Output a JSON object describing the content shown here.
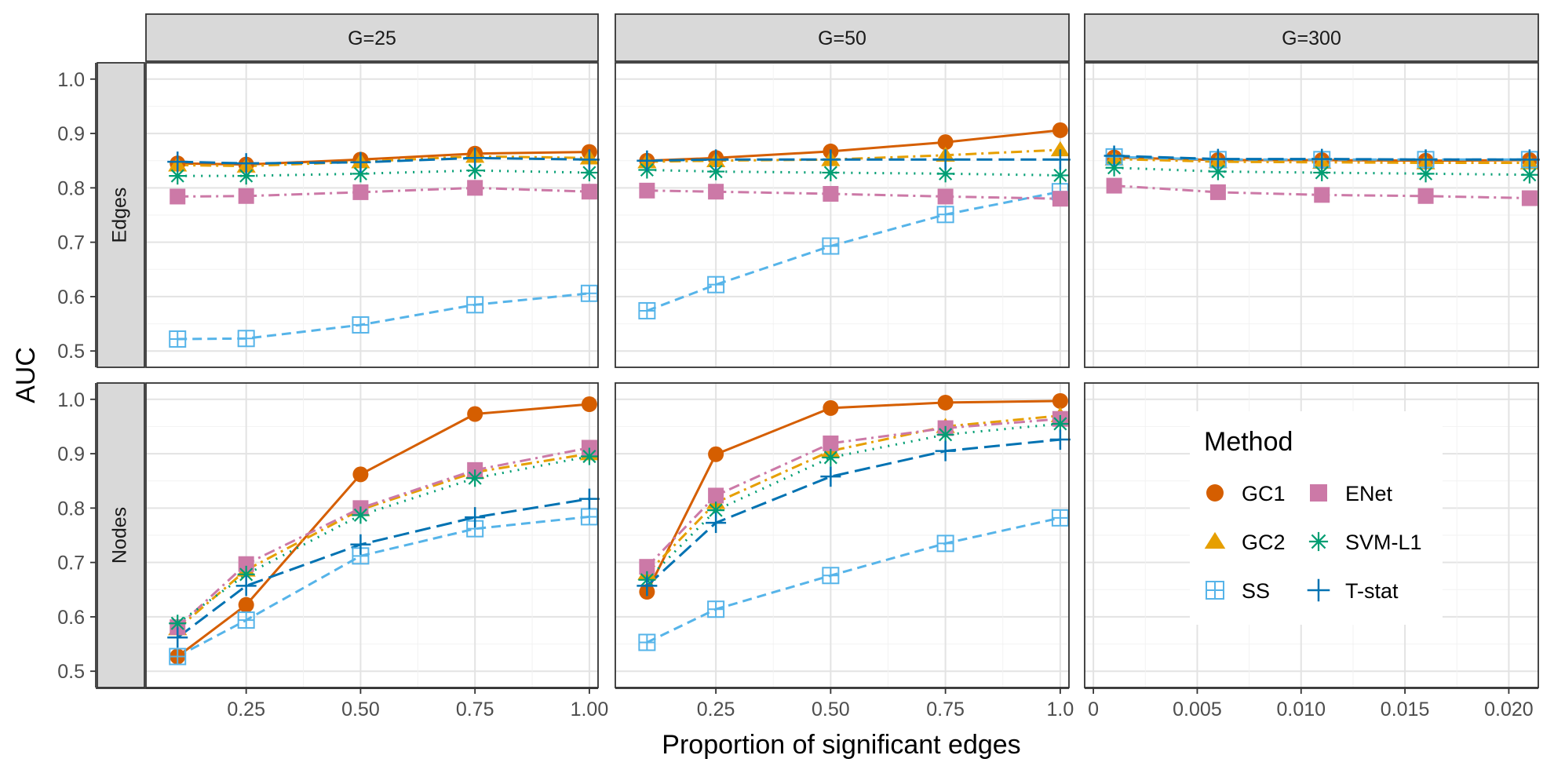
{
  "chart_data": {
    "type": "line",
    "ylabel": "AUC",
    "xlabel": "Proportion of significant edges",
    "ylim": [
      0.5,
      1.0
    ],
    "yticks": [
      "0.5",
      "0.6",
      "0.7",
      "0.8",
      "0.9",
      "1.0"
    ],
    "yticks_values": [
      0.5,
      0.6,
      0.7,
      0.8,
      0.9,
      1.0
    ],
    "columns": [
      {
        "label": "G=25",
        "xlim": [
          0.05,
          1.0
        ],
        "xticks_values": [
          0.25,
          0.5,
          0.75,
          1.0
        ],
        "xticks": [
          "0.25",
          "0.50",
          "0.75",
          "1.00"
        ]
      },
      {
        "label": "G=50",
        "xlim": [
          0.05,
          1.0
        ],
        "xticks_values": [
          0.25,
          0.5,
          0.75,
          1.0
        ],
        "xticks": [
          "0.25",
          "0.50",
          "0.75",
          "1.0"
        ]
      },
      {
        "label": "G=300",
        "xlim": [
          0.0,
          0.021
        ],
        "xticks_values": [
          0.0,
          0.005,
          0.01,
          0.015,
          0.02
        ],
        "xticks": [
          "0",
          "0.005",
          "0.010",
          "0.015",
          "0.020"
        ]
      }
    ],
    "rows": [
      {
        "label": "Edges"
      },
      {
        "label": "Nodes"
      }
    ],
    "legend": {
      "title": "Method",
      "entries": [
        "GC1",
        "ENet",
        "GC2",
        "SVM-L1",
        "SS",
        "T-stat"
      ],
      "placement": "bottom-right empty panel"
    },
    "methods": [
      {
        "name": "GC1",
        "color": "#D55E00",
        "linestyle": "solid",
        "marker": "circle"
      },
      {
        "name": "GC2",
        "color": "#E69F00",
        "linestyle": "dashdot",
        "marker": "triangle"
      },
      {
        "name": "SS",
        "color": "#56B4E9",
        "linestyle": "dashed",
        "marker": "boxplus"
      },
      {
        "name": "ENet",
        "color": "#CC79A7",
        "linestyle": "dashdot",
        "marker": "square"
      },
      {
        "name": "SVM-L1",
        "color": "#009E73",
        "linestyle": "dotted",
        "marker": "asterisk"
      },
      {
        "name": "T-stat",
        "color": "#0072B2",
        "linestyle": "longdash",
        "marker": "plus"
      }
    ],
    "panels": [
      {
        "row": 0,
        "col": 0,
        "x": [
          0.1,
          0.25,
          0.5,
          0.75,
          1.0
        ],
        "series": [
          {
            "name": "GC1",
            "values": [
              0.845,
              0.843,
              0.852,
              0.863,
              0.866
            ]
          },
          {
            "name": "GC2",
            "values": [
              0.842,
              0.84,
              0.848,
              0.858,
              0.855
            ]
          },
          {
            "name": "SS",
            "values": [
              0.522,
              0.523,
              0.548,
              0.585,
              0.606
            ]
          },
          {
            "name": "ENet",
            "values": [
              0.784,
              0.785,
              0.792,
              0.8,
              0.793
            ]
          },
          {
            "name": "SVM-L1",
            "values": [
              0.822,
              0.822,
              0.826,
              0.832,
              0.828
            ]
          },
          {
            "name": "T-stat",
            "values": [
              0.848,
              0.845,
              0.847,
              0.855,
              0.852
            ]
          }
        ]
      },
      {
        "row": 0,
        "col": 1,
        "x": [
          0.1,
          0.25,
          0.5,
          0.75,
          1.0
        ],
        "series": [
          {
            "name": "GC1",
            "values": [
              0.85,
              0.855,
              0.867,
              0.884,
              0.906
            ]
          },
          {
            "name": "GC2",
            "values": [
              0.848,
              0.85,
              0.852,
              0.86,
              0.87
            ]
          },
          {
            "name": "SS",
            "values": [
              0.574,
              0.622,
              0.693,
              0.751,
              0.793
            ]
          },
          {
            "name": "ENet",
            "values": [
              0.795,
              0.793,
              0.789,
              0.784,
              0.78
            ]
          },
          {
            "name": "SVM-L1",
            "values": [
              0.833,
              0.83,
              0.828,
              0.826,
              0.823
            ]
          },
          {
            "name": "T-stat",
            "values": [
              0.85,
              0.852,
              0.852,
              0.852,
              0.852
            ]
          }
        ]
      },
      {
        "row": 0,
        "col": 2,
        "x": [
          0.001,
          0.006,
          0.011,
          0.016,
          0.021
        ],
        "series": [
          {
            "name": "GC1",
            "values": [
              0.856,
              0.851,
              0.851,
              0.85,
              0.851
            ]
          },
          {
            "name": "GC2",
            "values": [
              0.853,
              0.848,
              0.847,
              0.846,
              0.846
            ]
          },
          {
            "name": "SS",
            "values": [
              0.857,
              0.852,
              0.852,
              0.852,
              0.852
            ]
          },
          {
            "name": "ENet",
            "values": [
              0.804,
              0.792,
              0.787,
              0.785,
              0.781
            ]
          },
          {
            "name": "SVM-L1",
            "values": [
              0.837,
              0.83,
              0.828,
              0.826,
              0.824
            ]
          },
          {
            "name": "T-stat",
            "values": [
              0.859,
              0.853,
              0.853,
              0.852,
              0.852
            ]
          }
        ]
      },
      {
        "row": 1,
        "col": 0,
        "x": [
          0.1,
          0.25,
          0.5,
          0.75,
          1.0
        ],
        "series": [
          {
            "name": "GC1",
            "values": [
              0.527,
              0.622,
              0.862,
              0.973,
              0.991
            ]
          },
          {
            "name": "GC2",
            "values": [
              0.578,
              0.686,
              0.797,
              0.866,
              0.9
            ]
          },
          {
            "name": "SS",
            "values": [
              0.527,
              0.594,
              0.712,
              0.762,
              0.784
            ]
          },
          {
            "name": "ENet",
            "values": [
              0.581,
              0.697,
              0.8,
              0.87,
              0.911
            ]
          },
          {
            "name": "SVM-L1",
            "values": [
              0.588,
              0.678,
              0.787,
              0.855,
              0.895
            ]
          },
          {
            "name": "T-stat",
            "values": [
              0.562,
              0.657,
              0.733,
              0.783,
              0.817
            ]
          }
        ]
      },
      {
        "row": 1,
        "col": 1,
        "x": [
          0.1,
          0.25,
          0.5,
          0.75,
          1.0
        ],
        "series": [
          {
            "name": "GC1",
            "values": [
              0.646,
              0.899,
              0.984,
              0.994,
              0.997
            ]
          },
          {
            "name": "GC2",
            "values": [
              0.68,
              0.81,
              0.905,
              0.95,
              0.97
            ]
          },
          {
            "name": "SS",
            "values": [
              0.553,
              0.614,
              0.676,
              0.735,
              0.782
            ]
          },
          {
            "name": "ENet",
            "values": [
              0.692,
              0.823,
              0.919,
              0.947,
              0.964
            ]
          },
          {
            "name": "SVM-L1",
            "values": [
              0.668,
              0.796,
              0.893,
              0.935,
              0.955
            ]
          },
          {
            "name": "T-stat",
            "values": [
              0.657,
              0.773,
              0.858,
              0.905,
              0.926
            ]
          }
        ]
      }
    ]
  }
}
